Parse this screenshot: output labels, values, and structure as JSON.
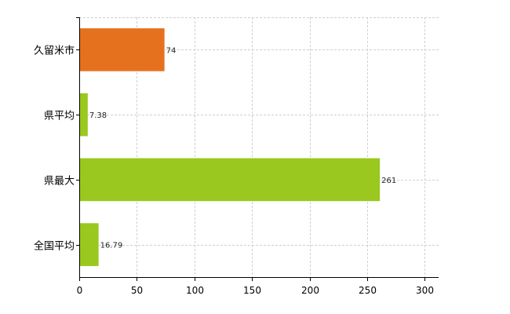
{
  "chart_data": {
    "type": "bar",
    "orientation": "horizontal",
    "categories": [
      "久留米市",
      "県平均",
      "県最大",
      "全国平均"
    ],
    "values": [
      74,
      7.38,
      261,
      16.79
    ],
    "value_labels": [
      "74",
      "7.38",
      "261",
      "16.79"
    ],
    "bar_colors": [
      "#e5711f",
      "#9ac81e",
      "#9ac81e",
      "#9ac81e"
    ],
    "xlim": [
      0,
      312
    ],
    "x_ticks": [
      0,
      50,
      100,
      150,
      200,
      250,
      300
    ],
    "x_tick_labels": [
      "0",
      "50",
      "100",
      "150",
      "200",
      "250",
      "300"
    ],
    "grid": true,
    "legend": "none"
  }
}
